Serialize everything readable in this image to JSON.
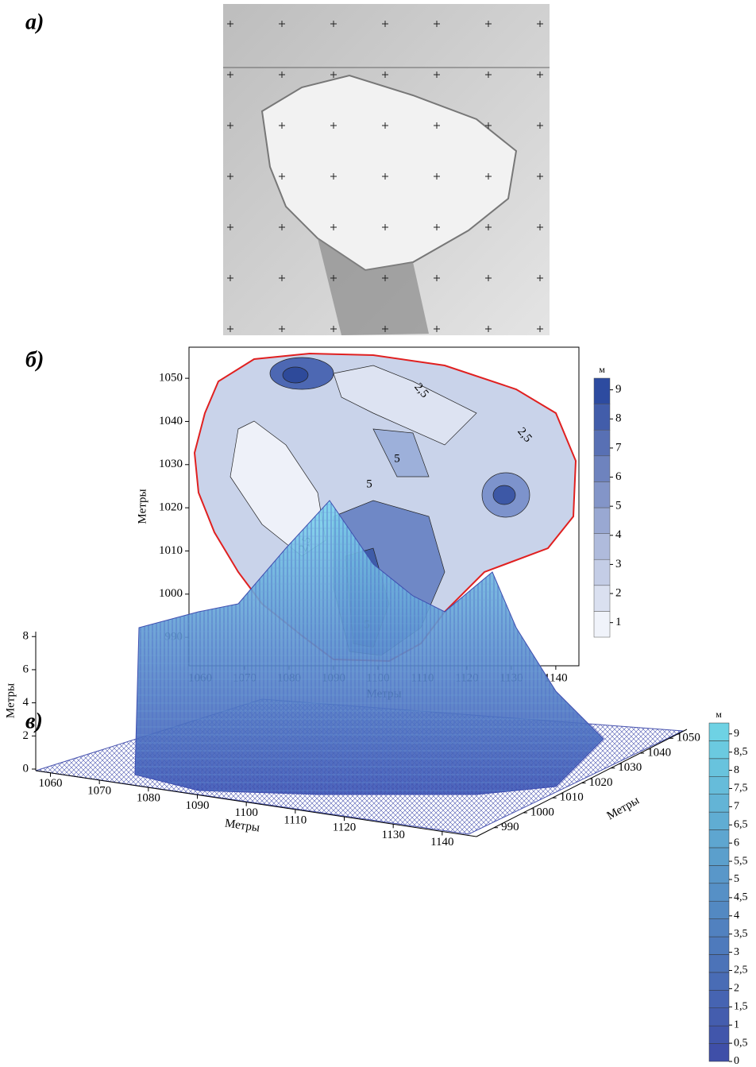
{
  "panels": [
    {
      "label": "а)"
    },
    {
      "label": "б)",
      "x_label": "Метры",
      "y_label": "Метры",
      "xlim": [
        1057.5,
        1145.2
      ],
      "xticks": [
        1060,
        1070,
        1080,
        1090,
        1100,
        1110,
        1120,
        1130,
        1140
      ],
      "ylim": [
        983.4,
        1057.2
      ],
      "yticks": [
        990,
        1000,
        1010,
        1020,
        1030,
        1040,
        1050
      ],
      "colorbar": {
        "unit": "м",
        "lim": [
          0.5,
          9.4
        ],
        "ticks": [
          1,
          2,
          3,
          4,
          5,
          6,
          7,
          8,
          9
        ]
      },
      "contour_labels": [
        {
          "value": 2.5,
          "label": "2,5"
        },
        {
          "value": 2.5,
          "label": "2,5"
        },
        {
          "value": 5,
          "label": "5"
        },
        {
          "value": 5,
          "label": "5"
        },
        {
          "value": 2.5,
          "label": "2,5"
        },
        {
          "value": 5,
          "label": "5"
        }
      ]
    },
    {
      "label": "в)",
      "x_label": "Метры",
      "y_label": "Метры",
      "z_label": "Метры",
      "xlim": [
        1057,
        1147
      ],
      "xticks": [
        1060,
        1070,
        1080,
        1090,
        1100,
        1110,
        1120,
        1130,
        1140
      ],
      "ylim": [
        984,
        1056
      ],
      "yticks": [
        990,
        1000,
        1010,
        1020,
        1030,
        1040,
        1050
      ],
      "zlim": [
        0,
        8.3
      ],
      "zticks": [
        0,
        2,
        4,
        6,
        8
      ],
      "colorbar": {
        "unit": "м",
        "lim": [
          0,
          9.3
        ],
        "ticks": [
          0,
          {
            "value": 0.5,
            "label": "0,5"
          },
          1,
          {
            "value": 1.5,
            "label": "1,5"
          },
          2,
          {
            "value": 2.5,
            "label": "2,5"
          },
          3,
          {
            "value": 3.5,
            "label": "3,5"
          },
          4,
          {
            "value": 4.5,
            "label": "4,5"
          },
          5,
          {
            "value": 5.5,
            "label": "5,5"
          },
          6,
          {
            "value": 6.5,
            "label": "6,5"
          },
          7,
          {
            "value": 7.5,
            "label": "7,5"
          },
          8,
          {
            "value": 8.5,
            "label": "8,5"
          },
          9
        ]
      }
    }
  ]
}
